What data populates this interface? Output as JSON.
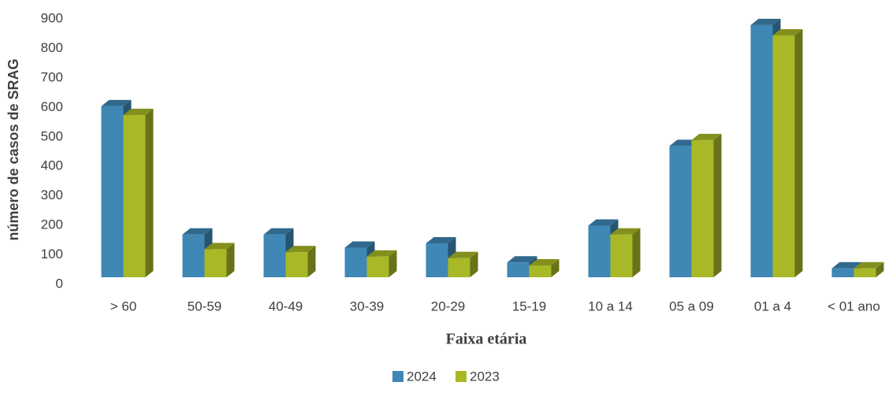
{
  "chart_data": {
    "type": "bar3d",
    "y_axis_label": "número de casos de SRAG",
    "x_axis_label": "Faixa etária",
    "categories": [
      "> 60",
      "50-59",
      "40-49",
      "30-39",
      "20-29",
      "15-19",
      "10 a 14",
      "05 a 09",
      "01 a 4",
      "< 01 ano"
    ],
    "series": [
      {
        "name": "2024",
        "color": "#3f87b5",
        "values": [
          580,
          145,
          145,
          100,
          115,
          50,
          175,
          445,
          855,
          30
        ]
      },
      {
        "name": "2023",
        "color": "#a8b826",
        "values": [
          550,
          95,
          85,
          70,
          65,
          40,
          145,
          465,
          820,
          30
        ]
      }
    ],
    "ylim": [
      0,
      900
    ],
    "yticks": [
      0,
      100,
      200,
      300,
      400,
      500,
      600,
      700,
      800,
      900
    ],
    "grid": false,
    "legend": "bottom"
  }
}
